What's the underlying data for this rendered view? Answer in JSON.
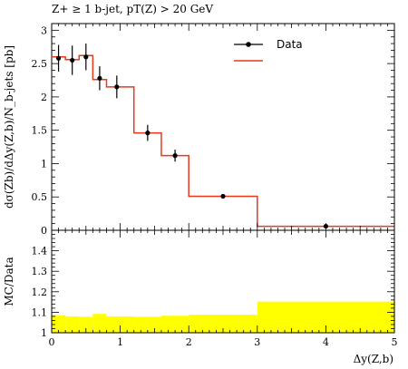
{
  "chart_data": [
    {
      "type": "line",
      "title": "Z+ ≥ 1 b-jet, pT(Z) > 20 GeV",
      "ylabel": "dσ(Zb)/dΔy(Z,b)/N_b-jets [pb]",
      "xlim": [
        0,
        5
      ],
      "ylim": [
        0,
        3.1
      ],
      "yticks": [
        "0",
        "0.5",
        "1",
        "1.5",
        "2",
        "2.5",
        "3"
      ],
      "legend": {
        "placement": "top-right",
        "entries": [
          "Data",
          ""
        ]
      },
      "colors": {
        "data": "#000000",
        "mc": "#e8391d"
      },
      "series": [
        {
          "name": "Data",
          "x": [
            0.1,
            0.3,
            0.5,
            0.7,
            0.95,
            1.4,
            1.8,
            2.5,
            4.0
          ],
          "y": [
            2.58,
            2.55,
            2.6,
            2.28,
            2.15,
            1.46,
            1.12,
            0.51,
            0.06
          ],
          "yerr": [
            0.2,
            0.22,
            0.2,
            0.18,
            0.17,
            0.12,
            0.09,
            0.03,
            0.015
          ]
        },
        {
          "name": "",
          "edges": [
            0,
            0.2,
            0.4,
            0.6,
            0.8,
            1.2,
            1.6,
            2.0,
            3.0,
            5.0
          ],
          "values": [
            2.6,
            2.56,
            2.62,
            2.26,
            2.15,
            1.46,
            1.12,
            0.51,
            0.06
          ]
        }
      ]
    },
    {
      "type": "area",
      "ylabel": "MC/Data",
      "xlabel": "Δy(Z,b)",
      "xlim": [
        0,
        5
      ],
      "ylim": [
        1.0,
        1.5
      ],
      "xticks": [
        "0",
        "1",
        "2",
        "3",
        "4",
        "5"
      ],
      "yticks": [
        "1",
        "1.1",
        "1.2",
        "1.3",
        "1.4"
      ],
      "colors": {
        "band": "#ffff00"
      },
      "edges": [
        0,
        0.2,
        0.4,
        0.6,
        0.8,
        1.2,
        1.6,
        2.0,
        3.0,
        5.0
      ],
      "values": [
        1.085,
        1.08,
        1.078,
        1.092,
        1.08,
        1.078,
        1.083,
        1.088,
        1.152
      ]
    }
  ]
}
